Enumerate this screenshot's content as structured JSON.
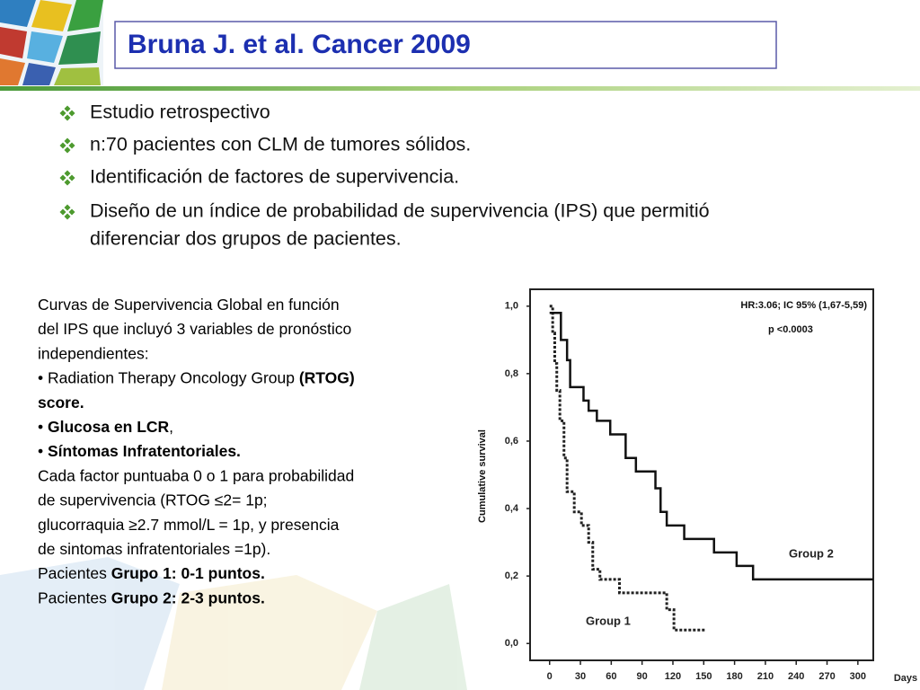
{
  "header": {
    "title": "Bruna J. et al. Cancer 2009"
  },
  "bullets": [
    [
      "Estudio retrospectivo"
    ],
    [
      "n:70 pacientes con CLM de tumores sólidos."
    ],
    [
      "Identificación de factores de supervivencia."
    ],
    [
      "Diseño de un índice de probabilidad de supervivencia (IPS) que permitió",
      "diferenciar dos grupos de pacientes."
    ]
  ],
  "description": {
    "lines": [
      [
        {
          "text": "Curvas de Supervivencia Global en función",
          "bold": false
        }
      ],
      [
        {
          "text": "del IPS que incluyó 3 variables de pronóstico",
          "bold": false
        }
      ],
      [
        {
          "text": "independientes:",
          "bold": false
        }
      ],
      [
        {
          "text": "• Radiation Therapy Oncology Group ",
          "bold": false
        },
        {
          "text": "(RTOG)",
          "bold": true
        }
      ],
      [
        {
          "text": "score.",
          "bold": true
        }
      ],
      [
        {
          "text": "• ",
          "bold": false
        },
        {
          "text": "Glucosa en LCR",
          "bold": true
        },
        {
          "text": ",",
          "bold": false
        }
      ],
      [
        {
          "text": "• ",
          "bold": false
        },
        {
          "text": "Síntomas Infratentoriales.",
          "bold": true
        }
      ],
      [
        {
          "text": "Cada factor puntuaba 0 o 1 para probabilidad",
          "bold": false
        }
      ],
      [
        {
          "text": "de supervivencia  (RTOG ≤2= 1p;",
          "bold": false
        }
      ],
      [
        {
          "text": "glucorraquia ≥2.7 mmol/L = 1p, y presencia",
          "bold": false
        }
      ],
      [
        {
          "text": "de sintomas infratentoriales =1p).",
          "bold": false
        }
      ],
      [
        {
          "text": "Pacientes ",
          "bold": false
        },
        {
          "text": "Grupo 1: 0-1 puntos.",
          "bold": true
        }
      ],
      [
        {
          "text": "Pacientes ",
          "bold": false
        },
        {
          "text": "Grupo 2: 2-3 puntos.",
          "bold": true
        }
      ]
    ]
  },
  "chart_data": {
    "type": "step",
    "y_label": "Cumulative survival",
    "x_label": "Days",
    "annotations": [
      "HR:3.06; IC 95% (1,67-5,59)",
      "p <0.0003"
    ],
    "xlim": [
      -19,
      315
    ],
    "ylim": [
      -0.05,
      1.05
    ],
    "xticks": [
      0,
      30,
      60,
      90,
      120,
      150,
      180,
      210,
      240,
      270,
      300
    ],
    "yticks": [
      {
        "value": 0,
        "label": "0,0"
      },
      {
        "value": 0.2,
        "label": "0,2"
      },
      {
        "value": 0.4,
        "label": "0,4"
      },
      {
        "value": 0.6,
        "label": "0,6"
      },
      {
        "value": 0.8,
        "label": "0,8"
      },
      {
        "value": 1,
        "label": "1,0"
      }
    ],
    "series": [
      {
        "name": "Group 1",
        "color": "#222222",
        "line_style": "dashed",
        "x": [
          0,
          3,
          5,
          7,
          10,
          14,
          17,
          24,
          31,
          38,
          42,
          49,
          68,
          114,
          121,
          151
        ],
        "values": [
          1.0,
          0.92,
          0.83,
          0.75,
          0.66,
          0.55,
          0.45,
          0.39,
          0.35,
          0.3,
          0.22,
          0.19,
          0.15,
          0.1,
          0.04,
          0.04
        ]
      },
      {
        "name": "Group 2",
        "color": "#111111",
        "line_style": "solid",
        "x": [
          0,
          11,
          17,
          20,
          33,
          38,
          46,
          59,
          74,
          84,
          103,
          108,
          114,
          131,
          160,
          182,
          198,
          315
        ],
        "values": [
          0.98,
          0.9,
          0.84,
          0.76,
          0.72,
          0.69,
          0.66,
          0.62,
          0.55,
          0.51,
          0.46,
          0.39,
          0.35,
          0.31,
          0.27,
          0.23,
          0.19,
          0.19
        ]
      }
    ]
  }
}
